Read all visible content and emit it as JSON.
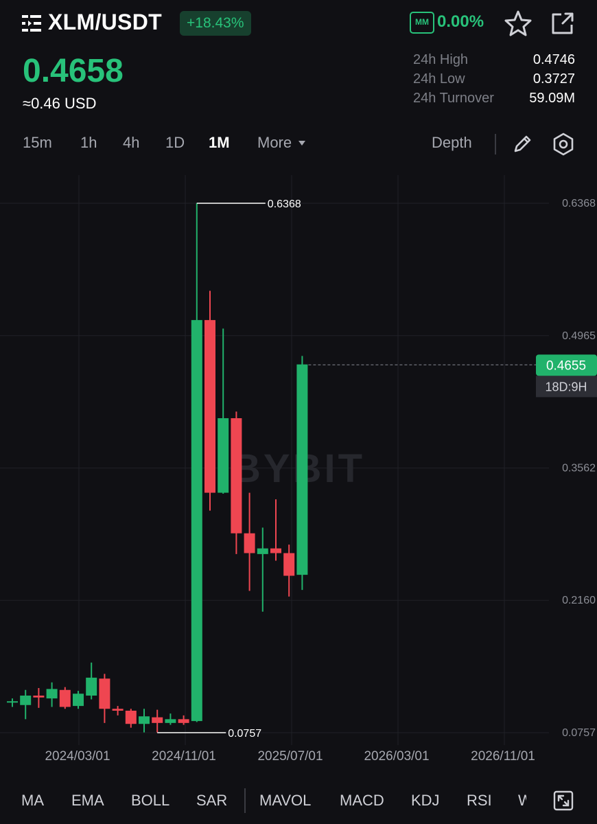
{
  "header": {
    "pair": "XLM/USDT",
    "change": "+18.43%",
    "mm_badge": "MM",
    "mm_value": "0.00%"
  },
  "price": {
    "last": "0.4658",
    "usd": "≈0.46 USD"
  },
  "stats": [
    {
      "label": "24h High",
      "value": "0.4746"
    },
    {
      "label": "24h Low",
      "value": "0.3727"
    },
    {
      "label": "24h Turnover",
      "value": "59.09M"
    }
  ],
  "intervals": {
    "items": [
      "15m",
      "1h",
      "4h",
      "1D",
      "1M",
      "More"
    ],
    "active": "1M",
    "depth_label": "Depth"
  },
  "chart_data": {
    "type": "candlestick",
    "watermark": "BYBIT",
    "y_ticks": [
      "0.6368",
      "0.4965",
      "0.3562",
      "0.2160",
      "0.0757"
    ],
    "ylim": [
      0.0757,
      0.6368
    ],
    "x_ticks": [
      "2024/03/01",
      "2024/11/01",
      "2025/07/01",
      "2026/03/01",
      "2026/11/01"
    ],
    "high_marker": "0.6368",
    "low_marker": "0.0757",
    "current_price": "0.4655",
    "countdown": "18D:9H",
    "colors": {
      "up": "#21b26b",
      "down": "#ef4651"
    },
    "candles": [
      {
        "o": 0.109,
        "c": 0.109,
        "h": 0.112,
        "l": 0.103
      },
      {
        "o": 0.105,
        "c": 0.115,
        "h": 0.121,
        "l": 0.09
      },
      {
        "o": 0.115,
        "c": 0.113,
        "h": 0.123,
        "l": 0.102
      },
      {
        "o": 0.112,
        "c": 0.122,
        "h": 0.129,
        "l": 0.103
      },
      {
        "o": 0.121,
        "c": 0.103,
        "h": 0.124,
        "l": 0.101
      },
      {
        "o": 0.104,
        "c": 0.117,
        "h": 0.12,
        "l": 0.101
      },
      {
        "o": 0.115,
        "c": 0.134,
        "h": 0.15,
        "l": 0.111
      },
      {
        "o": 0.133,
        "c": 0.101,
        "h": 0.138,
        "l": 0.086
      },
      {
        "o": 0.101,
        "c": 0.099,
        "h": 0.104,
        "l": 0.094
      },
      {
        "o": 0.099,
        "c": 0.085,
        "h": 0.101,
        "l": 0.081
      },
      {
        "o": 0.085,
        "c": 0.093,
        "h": 0.101,
        "l": 0.076
      },
      {
        "o": 0.092,
        "c": 0.086,
        "h": 0.1,
        "l": 0.076
      },
      {
        "o": 0.086,
        "c": 0.09,
        "h": 0.096,
        "l": 0.084
      },
      {
        "o": 0.09,
        "c": 0.086,
        "h": 0.094,
        "l": 0.084
      },
      {
        "o": 0.088,
        "c": 0.513,
        "h": 0.637,
        "l": 0.087
      },
      {
        "o": 0.513,
        "c": 0.33,
        "h": 0.544,
        "l": 0.311
      },
      {
        "o": 0.33,
        "c": 0.409,
        "h": 0.504,
        "l": 0.329
      },
      {
        "o": 0.409,
        "c": 0.287,
        "h": 0.416,
        "l": 0.265
      },
      {
        "o": 0.287,
        "c": 0.266,
        "h": 0.33,
        "l": 0.226
      },
      {
        "o": 0.265,
        "c": 0.271,
        "h": 0.293,
        "l": 0.204
      },
      {
        "o": 0.271,
        "c": 0.266,
        "h": 0.323,
        "l": 0.258
      },
      {
        "o": 0.266,
        "c": 0.242,
        "h": 0.275,
        "l": 0.22
      },
      {
        "o": 0.243,
        "c": 0.466,
        "h": 0.475,
        "l": 0.227
      }
    ]
  },
  "indicators": {
    "items": [
      "MA",
      "EMA",
      "BOLL",
      "SAR",
      "MAVOL",
      "MACD",
      "KDJ",
      "RSI",
      "W"
    ]
  }
}
